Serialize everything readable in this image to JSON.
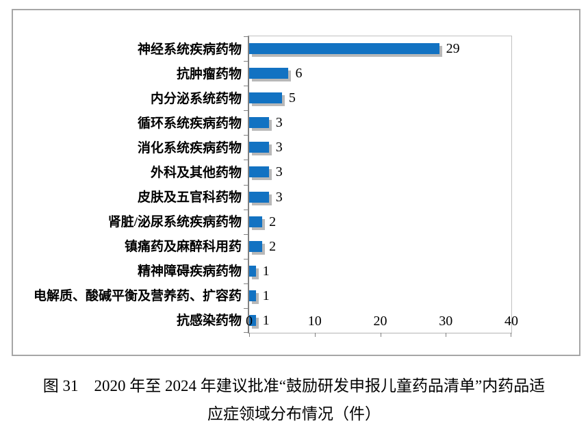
{
  "chart_data": {
    "type": "bar",
    "orientation": "horizontal",
    "categories": [
      "神经系统疾病药物",
      "抗肿瘤药物",
      "内分泌系统药物",
      "循环系统疾病药物",
      "消化系统疾病药物",
      "外科及其他药物",
      "皮肤及五官科药物",
      "肾脏/泌尿系统疾病药物",
      "镇痛药及麻醉科用药",
      "精神障碍疾病药物",
      "电解质、酸碱平衡及营养药、扩容药",
      "抗感染药物"
    ],
    "values": [
      29,
      6,
      5,
      3,
      3,
      3,
      3,
      2,
      2,
      1,
      1,
      1
    ],
    "xlim": [
      0,
      40
    ],
    "x_ticks": [
      0,
      10,
      20,
      30,
      40
    ],
    "data_labels": true,
    "grid": false,
    "legend": false,
    "bar_color": "#1272C2",
    "shadow_color": "#b8b8b8",
    "axis_color": "#808080",
    "frame_border_color": "#a6a6a6"
  },
  "caption": {
    "line1": "图 31　2020 年至 2024 年建议批准“鼓励研发申报儿童药品清单”内药品适",
    "line2": "应症领域分布情况（件）"
  }
}
